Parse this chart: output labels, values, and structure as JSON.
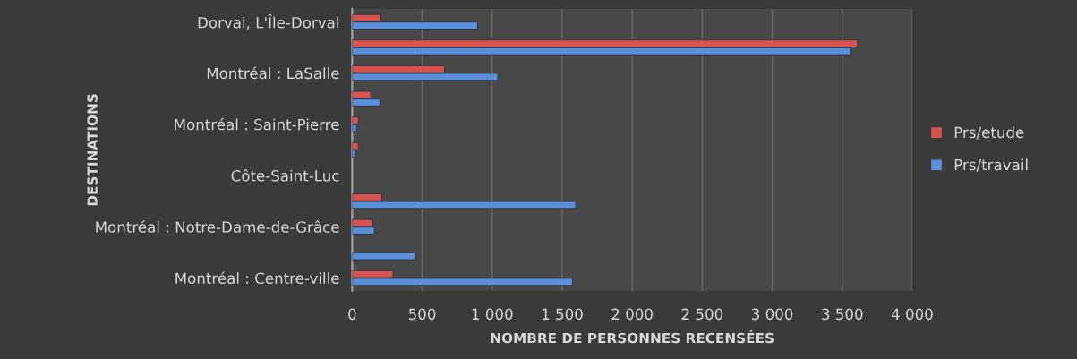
{
  "chart_data": {
    "type": "bar",
    "orientation": "horizontal",
    "xlabel": "NOMBRE DE PERSONNES RECENSÉES",
    "ylabel": "DESTINATIONS",
    "categories": [
      "Dorval, L'Île-Dorval",
      null,
      "Montréal : LaSalle",
      null,
      "Montréal : Saint-Pierre",
      null,
      "Côte-Saint-Luc",
      null,
      "Montréal : Notre-Dame-de-Grâce",
      null,
      "Montréal : Centre-ville"
    ],
    "series": [
      {
        "name": "Prs/etude",
        "color": "#d9544f",
        "values": [
          205,
          3610,
          660,
          133,
          44,
          44,
          null,
          213,
          146,
          null,
          292
        ]
      },
      {
        "name": "Prs/travail",
        "color": "#5b8fd9",
        "values": [
          895,
          3560,
          1040,
          197,
          31,
          20,
          null,
          1597,
          159,
          451,
          1574
        ]
      }
    ],
    "xlim": [
      0,
      4000
    ],
    "xticks": [
      0,
      500,
      {
        "value": 1000,
        "label": "1 000"
      },
      {
        "value": 1500,
        "label": "1 500"
      },
      {
        "value": 2000,
        "label": "2 000"
      },
      {
        "value": 2500,
        "label": "2 500"
      },
      {
        "value": 3000,
        "label": "3 000"
      },
      {
        "value": 3500,
        "label": "3 500"
      },
      {
        "value": 4000,
        "label": "4 000"
      }
    ],
    "grid": "x",
    "legend": "right"
  }
}
